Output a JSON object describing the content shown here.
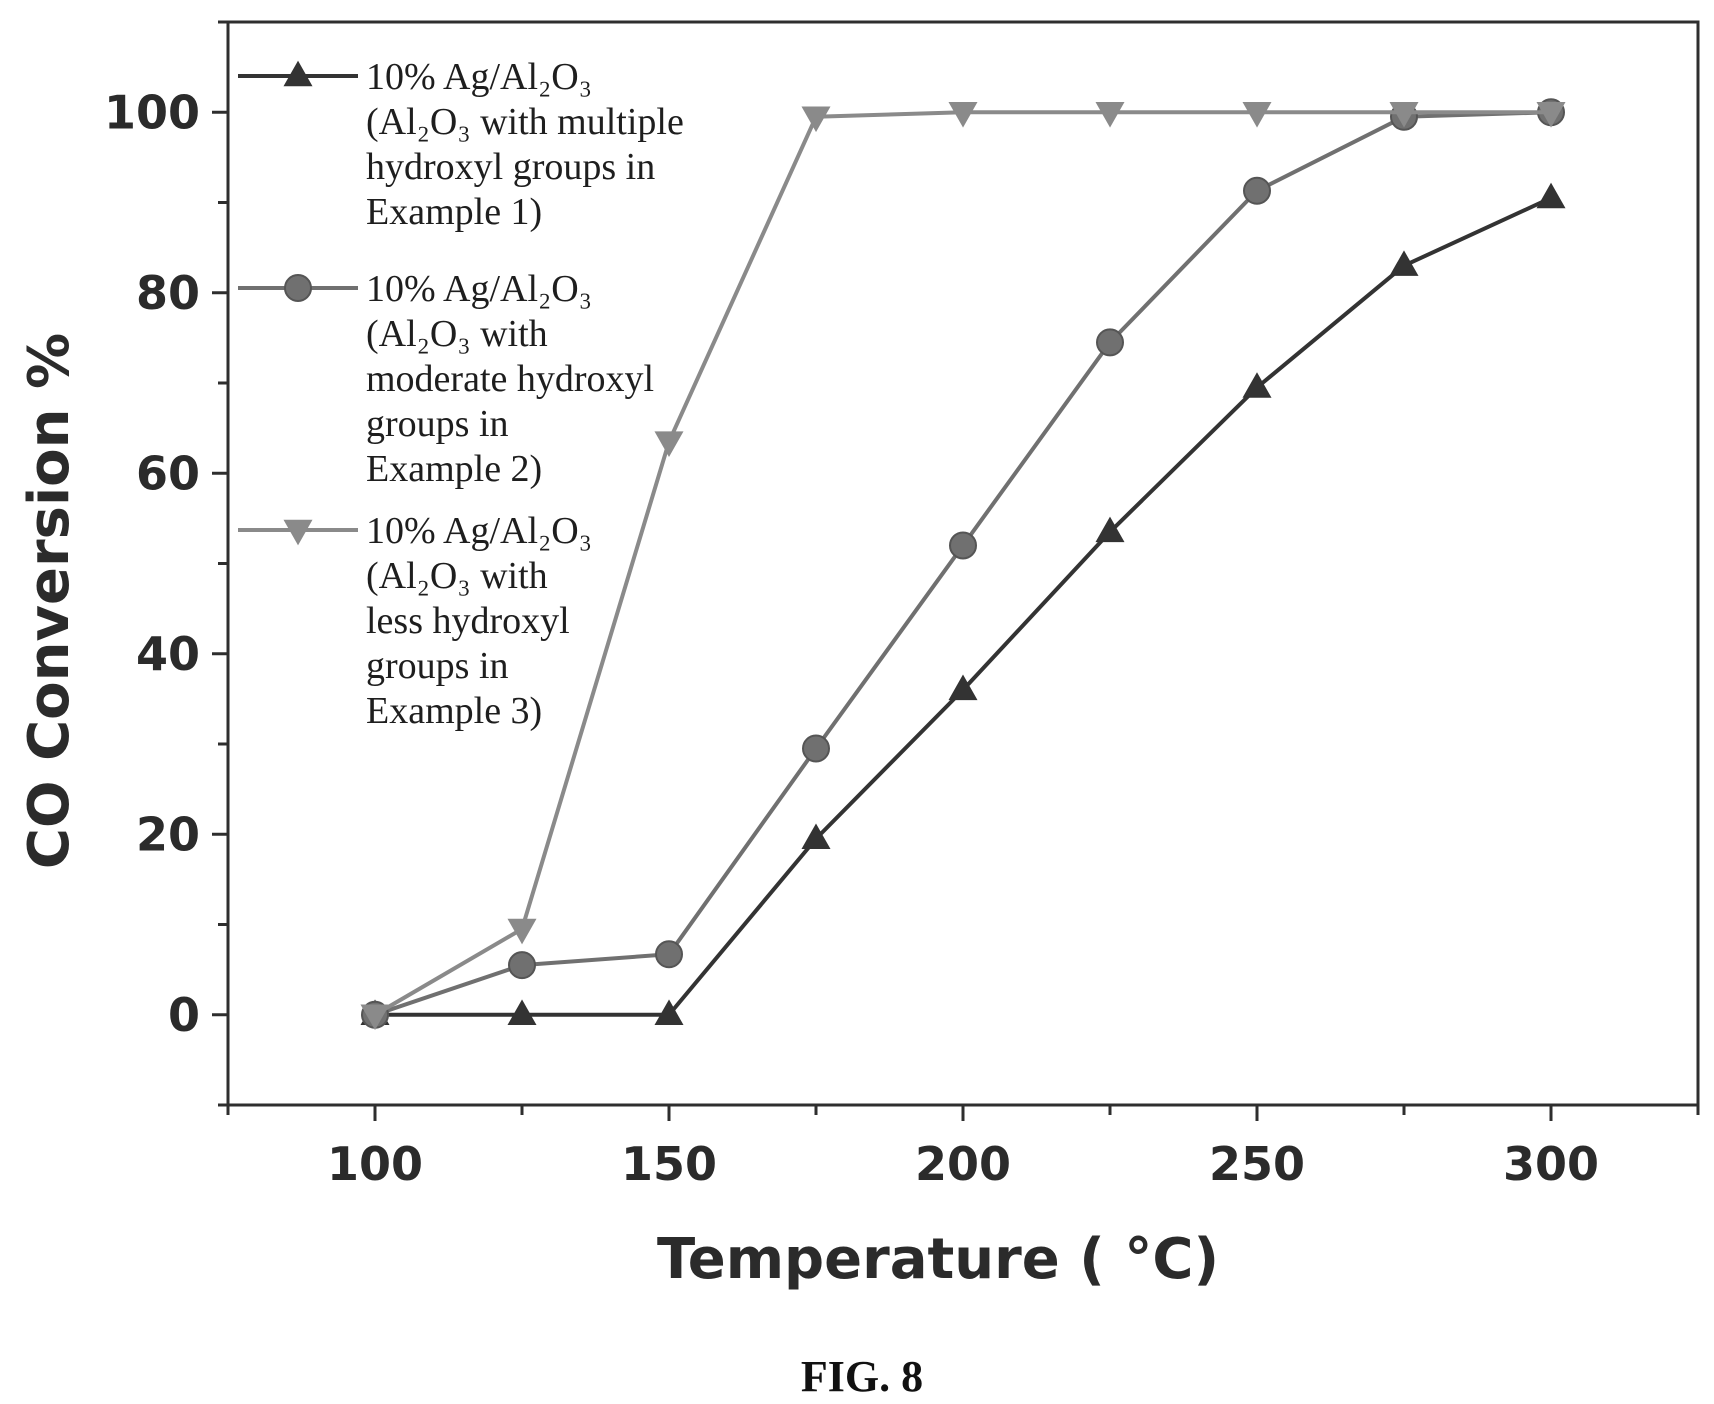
{
  "chart_data": {
    "type": "line",
    "xlabel": "Temperature ( °C)",
    "ylabel": "CO Conversion %",
    "xlim": [
      75,
      325
    ],
    "ylim": [
      -10,
      110
    ],
    "xticks": [
      100,
      150,
      200,
      250,
      300
    ],
    "yticks": [
      0,
      20,
      40,
      60,
      80,
      100
    ],
    "grid": false,
    "legend_position": "top-left",
    "x": [
      100,
      125,
      150,
      175,
      200,
      225,
      250,
      275,
      300
    ],
    "series": [
      {
        "marker": "triangle-up",
        "color": "#333333",
        "legend_lines": [
          "10% Ag/Al₂O₃",
          "(Al₂O₃ with multiple",
          "hydroxyl groups in",
          "Example 1)"
        ],
        "values": [
          0,
          0,
          0,
          19.5,
          36,
          53.5,
          69.5,
          83,
          90.5
        ]
      },
      {
        "marker": "circle",
        "color": "#707070",
        "legend_lines": [
          "10% Ag/Al₂O₃",
          "(Al₂O₃ with",
          "moderate hydroxyl",
          "groups in",
          "Example 2)"
        ],
        "values": [
          0,
          5.5,
          6.7,
          29.5,
          52,
          74.5,
          91.3,
          99.5,
          100
        ]
      },
      {
        "marker": "triangle-down",
        "color": "#8a8a8a",
        "legend_lines": [
          "10% Ag/Al₂O₃",
          "(Al₂O₃ with",
          "less hydroxyl",
          "groups in",
          "Example 3)"
        ],
        "values": [
          0,
          9.5,
          63.5,
          99.5,
          100,
          100,
          100,
          100,
          100
        ]
      }
    ]
  },
  "caption": "FIG. 8"
}
